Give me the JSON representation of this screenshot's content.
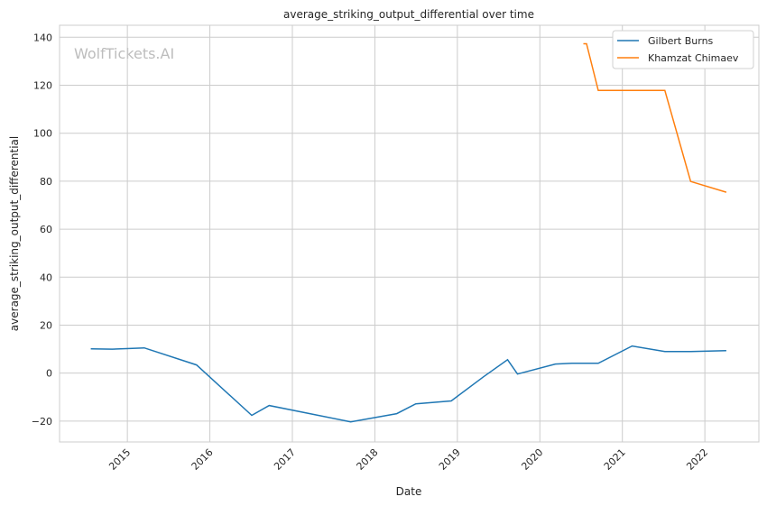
{
  "chart_data": {
    "type": "line",
    "title": "average_striking_output_differential over time",
    "xlabel": "Date",
    "ylabel": "average_striking_output_differential",
    "watermark": "WolfTickets.AI",
    "xlim": [
      "2014-03-07",
      "2022-08-28"
    ],
    "ylim": [
      -28.7,
      145
    ],
    "x_ticks": [
      "2015",
      "2016",
      "2017",
      "2018",
      "2019",
      "2020",
      "2021",
      "2022"
    ],
    "y_ticks": [
      -20,
      0,
      20,
      40,
      60,
      80,
      100,
      120,
      140
    ],
    "grid": true,
    "legend_position": "top-right",
    "series": [
      {
        "name": "Gilbert Burns",
        "color": "#1f77b4",
        "x": [
          "2014-07-23",
          "2014-10-26",
          "2015-03-17",
          "2015-11-03",
          "2016-07-05",
          "2016-09-20",
          "2017-09-16",
          "2018-04-08",
          "2018-07-01",
          "2018-12-05",
          "2019-04-27",
          "2019-08-11",
          "2019-09-24",
          "2020-03-10",
          "2020-05-22",
          "2020-09-16",
          "2021-02-13",
          "2021-07-08",
          "2021-10-30",
          "2022-04-06"
        ],
        "values": [
          10.1,
          10.0,
          10.5,
          3.4,
          -17.6,
          -13.5,
          -20.3,
          -16.9,
          -12.8,
          -11.6,
          -1.5,
          5.6,
          -0.4,
          3.8,
          4.1,
          4.1,
          11.3,
          9.0,
          9.0,
          9.4
        ]
      },
      {
        "name": "Khamzat Chimaev",
        "color": "#ff7f0e",
        "x": [
          "2020-07-12",
          "2020-07-26",
          "2020-09-16",
          "2021-07-08",
          "2021-10-30",
          "2022-04-06"
        ],
        "values": [
          137.3,
          137.3,
          117.8,
          117.8,
          79.9,
          75.4
        ]
      }
    ]
  }
}
